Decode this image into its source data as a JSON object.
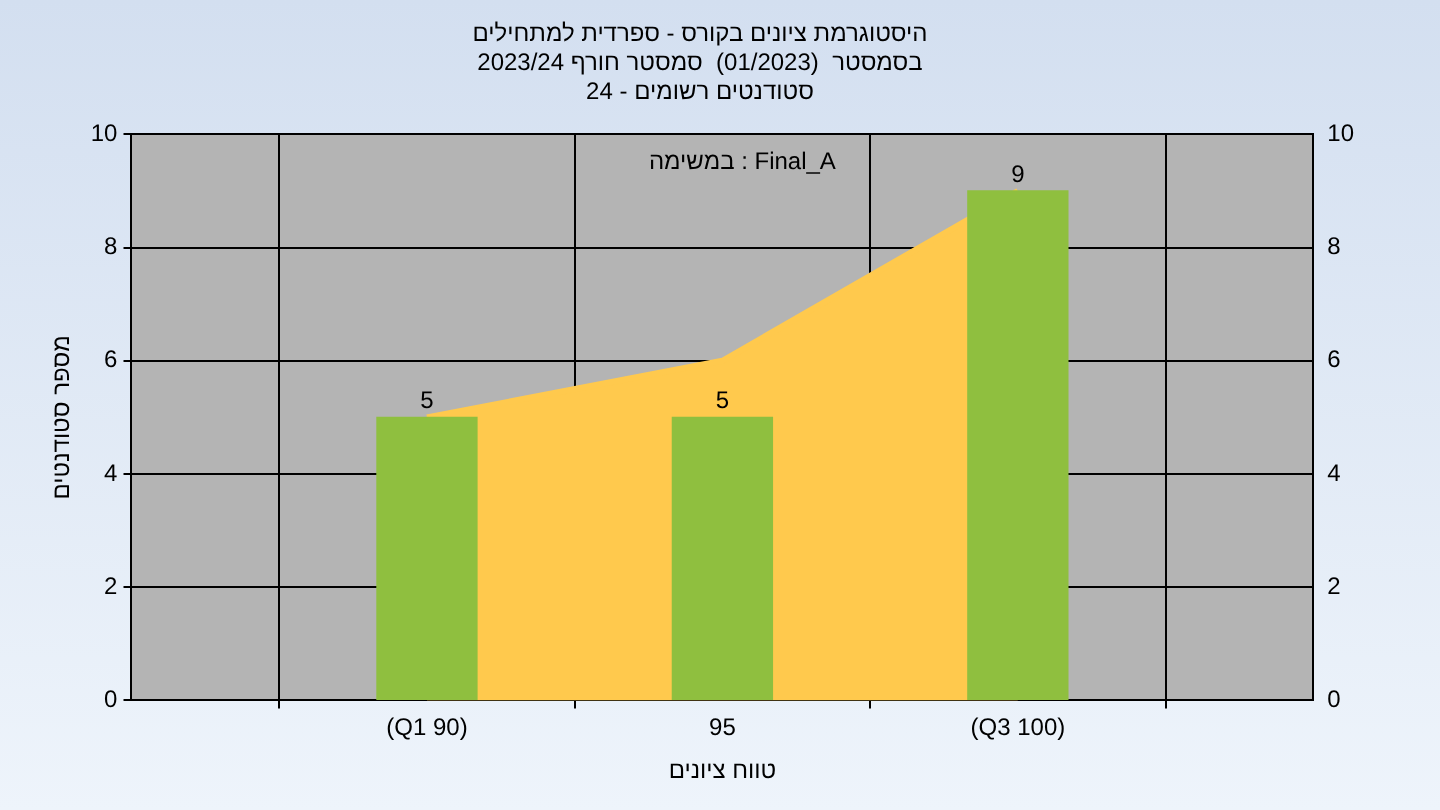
{
  "chart_data": {
    "type": "bar",
    "title": "היסטוגרמת ציונים בקורס - ספרדית למתחילים",
    "subtitle": "בסמסטר  (01/2023)  סמסטר חורף 2023/24\nסטודנטים רשומים - 24",
    "xlabel": "טווח ציונים",
    "ylabel": "מספר סטודנטים",
    "categories": [
      null,
      "(Q1 90)",
      "95",
      "(Q3 100)",
      null
    ],
    "series": [
      {
        "color": "#8fbf3f",
        "values": [
          null,
          5,
          5,
          9,
          null
        ],
        "value_labels": [
          null,
          "5",
          "5",
          "9",
          null
        ]
      },
      {
        "type": "area",
        "color": "#ffc94d",
        "values": [
          null,
          5,
          6,
          9,
          null
        ]
      }
    ],
    "annotations": [
      "במשימה : Final_A"
    ],
    "ylim": [
      0,
      10
    ],
    "yticks": [
      0,
      2,
      4,
      6,
      8,
      10
    ],
    "y2lim": [
      0,
      10
    ],
    "y2ticks": [
      0,
      2,
      4,
      6,
      8,
      10
    ],
    "grid": true,
    "legend": false
  }
}
